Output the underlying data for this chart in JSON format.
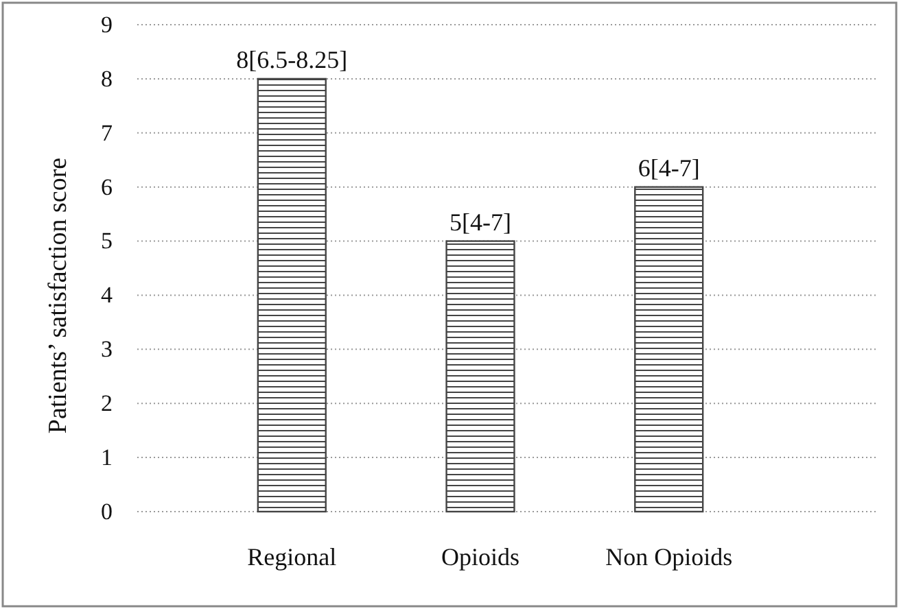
{
  "chart_data": {
    "type": "bar",
    "categories": [
      "Regional",
      "Opioids",
      "Non Opioids"
    ],
    "values": [
      8,
      5,
      6
    ],
    "value_labels": [
      "8[6.5-8.25]",
      "5[4-7]",
      "6[4-7]"
    ],
    "color": "#444444",
    "ylabel": "Patients’ satisfaction score",
    "ylim": [
      0,
      9
    ],
    "yticks": [
      0,
      1,
      2,
      3,
      4,
      5,
      6,
      7,
      8,
      9
    ],
    "grid": "y"
  }
}
